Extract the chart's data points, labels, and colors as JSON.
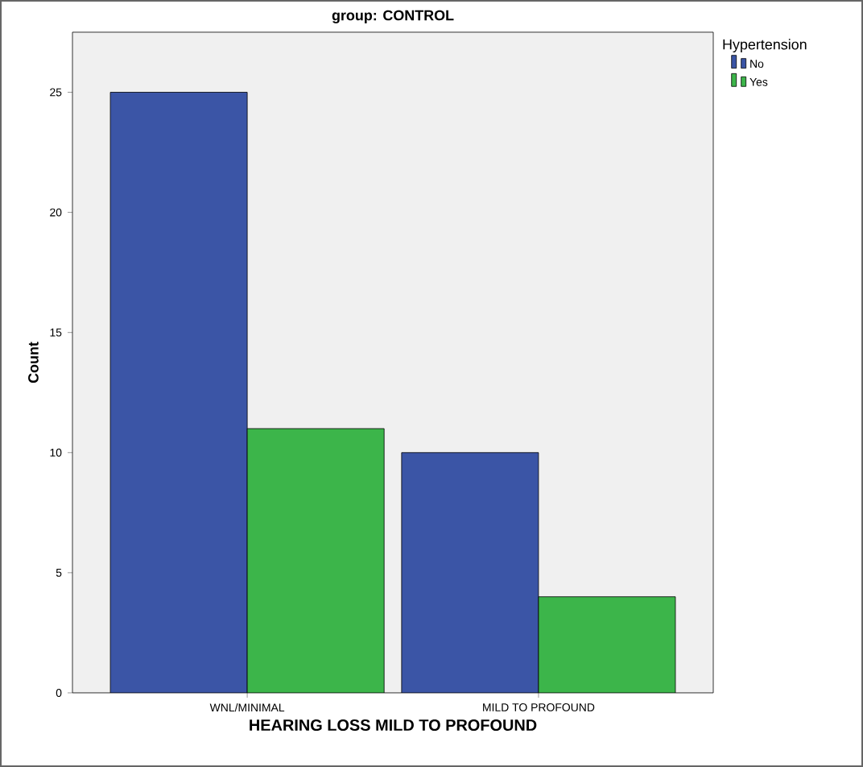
{
  "chart_data": {
    "type": "bar",
    "title": "group: CONTROL",
    "xlabel": "HEARING LOSS MILD TO PROFOUND",
    "ylabel": "Count",
    "legend_title": "Hypertension",
    "categories": [
      "WNL/MINIMAL",
      "MILD TO PROFOUND"
    ],
    "series": [
      {
        "name": "No",
        "color": "#3b55a6",
        "values": [
          25,
          10
        ]
      },
      {
        "name": "Yes",
        "color": "#3cb54a",
        "values": [
          11,
          4
        ]
      }
    ],
    "ylim": [
      0,
      27.5
    ],
    "yticks": [
      0,
      5,
      10,
      15,
      20,
      25
    ],
    "grid": false,
    "legend": "top right"
  }
}
